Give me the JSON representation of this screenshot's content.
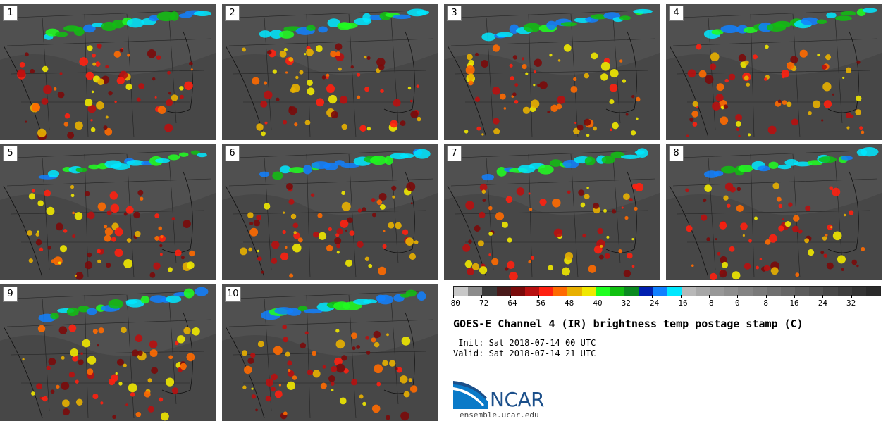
{
  "panels": [
    {
      "label": "1"
    },
    {
      "label": "2"
    },
    {
      "label": "3"
    },
    {
      "label": "4"
    },
    {
      "label": "5"
    },
    {
      "label": "6"
    },
    {
      "label": "7"
    },
    {
      "label": "8"
    },
    {
      "label": "9"
    },
    {
      "label": "10"
    }
  ],
  "colorbar": {
    "min": -80,
    "max": 40,
    "colors": [
      "#c8c8c8",
      "#8c8c8c",
      "#3a3a3a",
      "#4a1a1a",
      "#7a0a0a",
      "#b81010",
      "#ff2010",
      "#ff6a00",
      "#e8b000",
      "#f0e800",
      "#20ff20",
      "#10c010",
      "#0a8a20",
      "#0020b0",
      "#1080ff",
      "#00e8ff",
      "#b8b8b8",
      "#a8a8a8",
      "#989898",
      "#8e8e8e",
      "#848484",
      "#7a7a7a",
      "#707070",
      "#666666",
      "#5c5c5c",
      "#525252",
      "#484848",
      "#3e3e3e",
      "#343434",
      "#2a2a2a"
    ],
    "ticks": [
      "−80",
      "−72",
      "−64",
      "−56",
      "−48",
      "−40",
      "−32",
      "−24",
      "−16",
      "−8",
      "0",
      "8",
      "16",
      "24",
      "32"
    ]
  },
  "title": "GOES-E Channel 4 (IR) brightness temp postage stamp (C)",
  "init": " Init: Sat 2018-07-14 00 UTC",
  "valid": "Valid: Sat 2018-07-14 21 UTC",
  "logo": {
    "name": "NCAR",
    "url": "ensemble.ucar.edu",
    "color": "#1b4f8a"
  }
}
